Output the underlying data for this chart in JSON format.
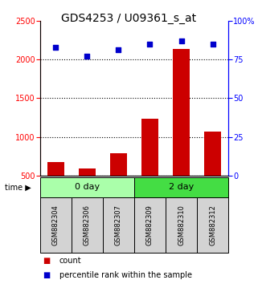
{
  "title": "GDS4253 / U09361_s_at",
  "samples": [
    "GSM882304",
    "GSM882306",
    "GSM882307",
    "GSM882309",
    "GSM882310",
    "GSM882312"
  ],
  "counts": [
    670,
    590,
    790,
    1230,
    2140,
    1070
  ],
  "percentiles": [
    83,
    77,
    81,
    85,
    87,
    85
  ],
  "bar_color": "#cc0000",
  "dot_color": "#0000cc",
  "left_ylim": [
    500,
    2500
  ],
  "right_ylim": [
    0,
    100
  ],
  "left_yticks": [
    500,
    1000,
    1500,
    2000,
    2500
  ],
  "right_yticks": [
    0,
    25,
    50,
    75,
    100
  ],
  "right_yticklabels": [
    "0",
    "25",
    "50",
    "75",
    "100%"
  ],
  "title_fontsize": 10,
  "tick_fontsize": 7,
  "sample_fontsize": 6,
  "group_fontsize": 8,
  "legend_fontsize": 7
}
